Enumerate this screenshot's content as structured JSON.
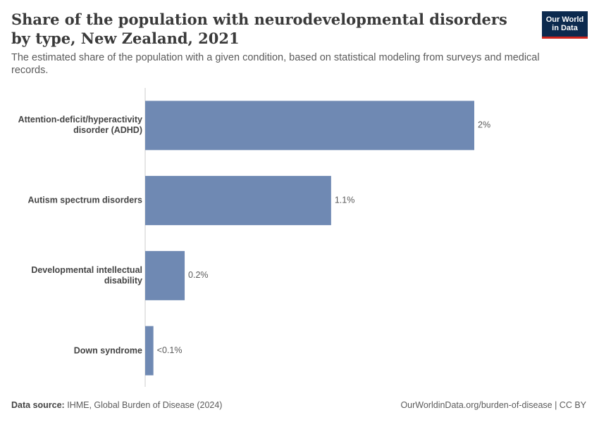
{
  "chart_data": {
    "type": "bar",
    "orientation": "horizontal",
    "title": "Share of the population with neurodevelopmental disorders by type, New Zealand, 2021",
    "subtitle": "The estimated share of the population with a given condition, based on statistical modeling from surveys and medical records.",
    "categories": [
      "Attention-deficit/hyperactivity disorder (ADHD)",
      "Autism spectrum disorders",
      "Developmental intellectual disability",
      "Down syndrome"
    ],
    "values": [
      2.0,
      1.13,
      0.24,
      0.05
    ],
    "value_labels": [
      "2%",
      "1.1%",
      "0.2%",
      "<0.1%"
    ],
    "color": "#6f89b3",
    "source_label": "Data source:",
    "source": "IHME, Global Burden of Disease (2024)",
    "url": "OurWorldinData.org/burden-of-disease | CC BY",
    "logo": [
      "Our World",
      "in Data"
    ]
  }
}
